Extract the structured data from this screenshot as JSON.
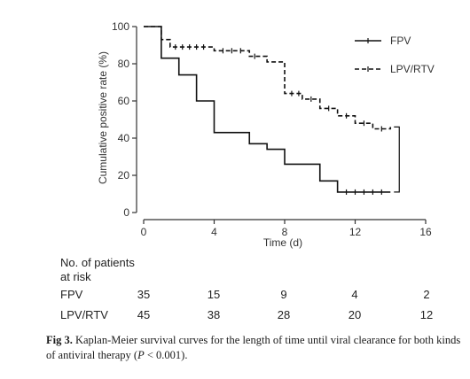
{
  "chart_data": {
    "type": "line",
    "style": "kaplan-meier step",
    "ylabel": "Cumulative positive rate (%)",
    "xlabel": "Time (d)",
    "xlim": [
      0,
      16
    ],
    "ylim": [
      0,
      100
    ],
    "xticks": [
      0,
      4,
      8,
      12,
      16
    ],
    "yticks": [
      0,
      20,
      40,
      60,
      80,
      100
    ],
    "legend_position": "top-right",
    "series": [
      {
        "name": "FPV",
        "line": "solid",
        "steps": [
          [
            0,
            100
          ],
          [
            1,
            83
          ],
          [
            2,
            74
          ],
          [
            3,
            60
          ],
          [
            4,
            43
          ],
          [
            6,
            37
          ],
          [
            7,
            34
          ],
          [
            8,
            26
          ],
          [
            10,
            17
          ],
          [
            11,
            11
          ],
          [
            14,
            11
          ]
        ],
        "censor_x": [
          11.5,
          12,
          12.5,
          13,
          13.5
        ]
      },
      {
        "name": "LPV/RTV",
        "line": "dashed",
        "steps": [
          [
            0,
            100
          ],
          [
            1,
            93
          ],
          [
            1.5,
            89
          ],
          [
            4,
            87
          ],
          [
            6,
            84
          ],
          [
            7,
            81
          ],
          [
            8,
            64
          ],
          [
            9,
            61
          ],
          [
            10,
            56
          ],
          [
            11,
            52
          ],
          [
            12,
            48
          ],
          [
            13,
            45
          ],
          [
            14,
            46
          ]
        ],
        "censor_x": [
          1.8,
          2.2,
          2.6,
          3,
          3.4,
          4.5,
          5,
          5.5,
          6.3,
          8.4,
          8.8,
          9.5,
          10.5,
          11.5,
          12.5,
          13.5
        ]
      }
    ],
    "annotation": "bracket between curve ends at day 14"
  },
  "risk_table": {
    "title_line1": "No. of patients",
    "title_line2": "at risk",
    "rows": [
      {
        "label": "FPV",
        "values": [
          "35",
          "15",
          "9",
          "4",
          "2"
        ]
      },
      {
        "label": "LPV/RTV",
        "values": [
          "45",
          "38",
          "28",
          "20",
          "12"
        ]
      }
    ]
  },
  "caption": {
    "label": "Fig 3.",
    "text": "Kaplan-Meier survival curves for the length of time until viral clearance for both kinds of antiviral therapy (",
    "p_symbol": "P",
    "p_value": " < 0.001)."
  }
}
